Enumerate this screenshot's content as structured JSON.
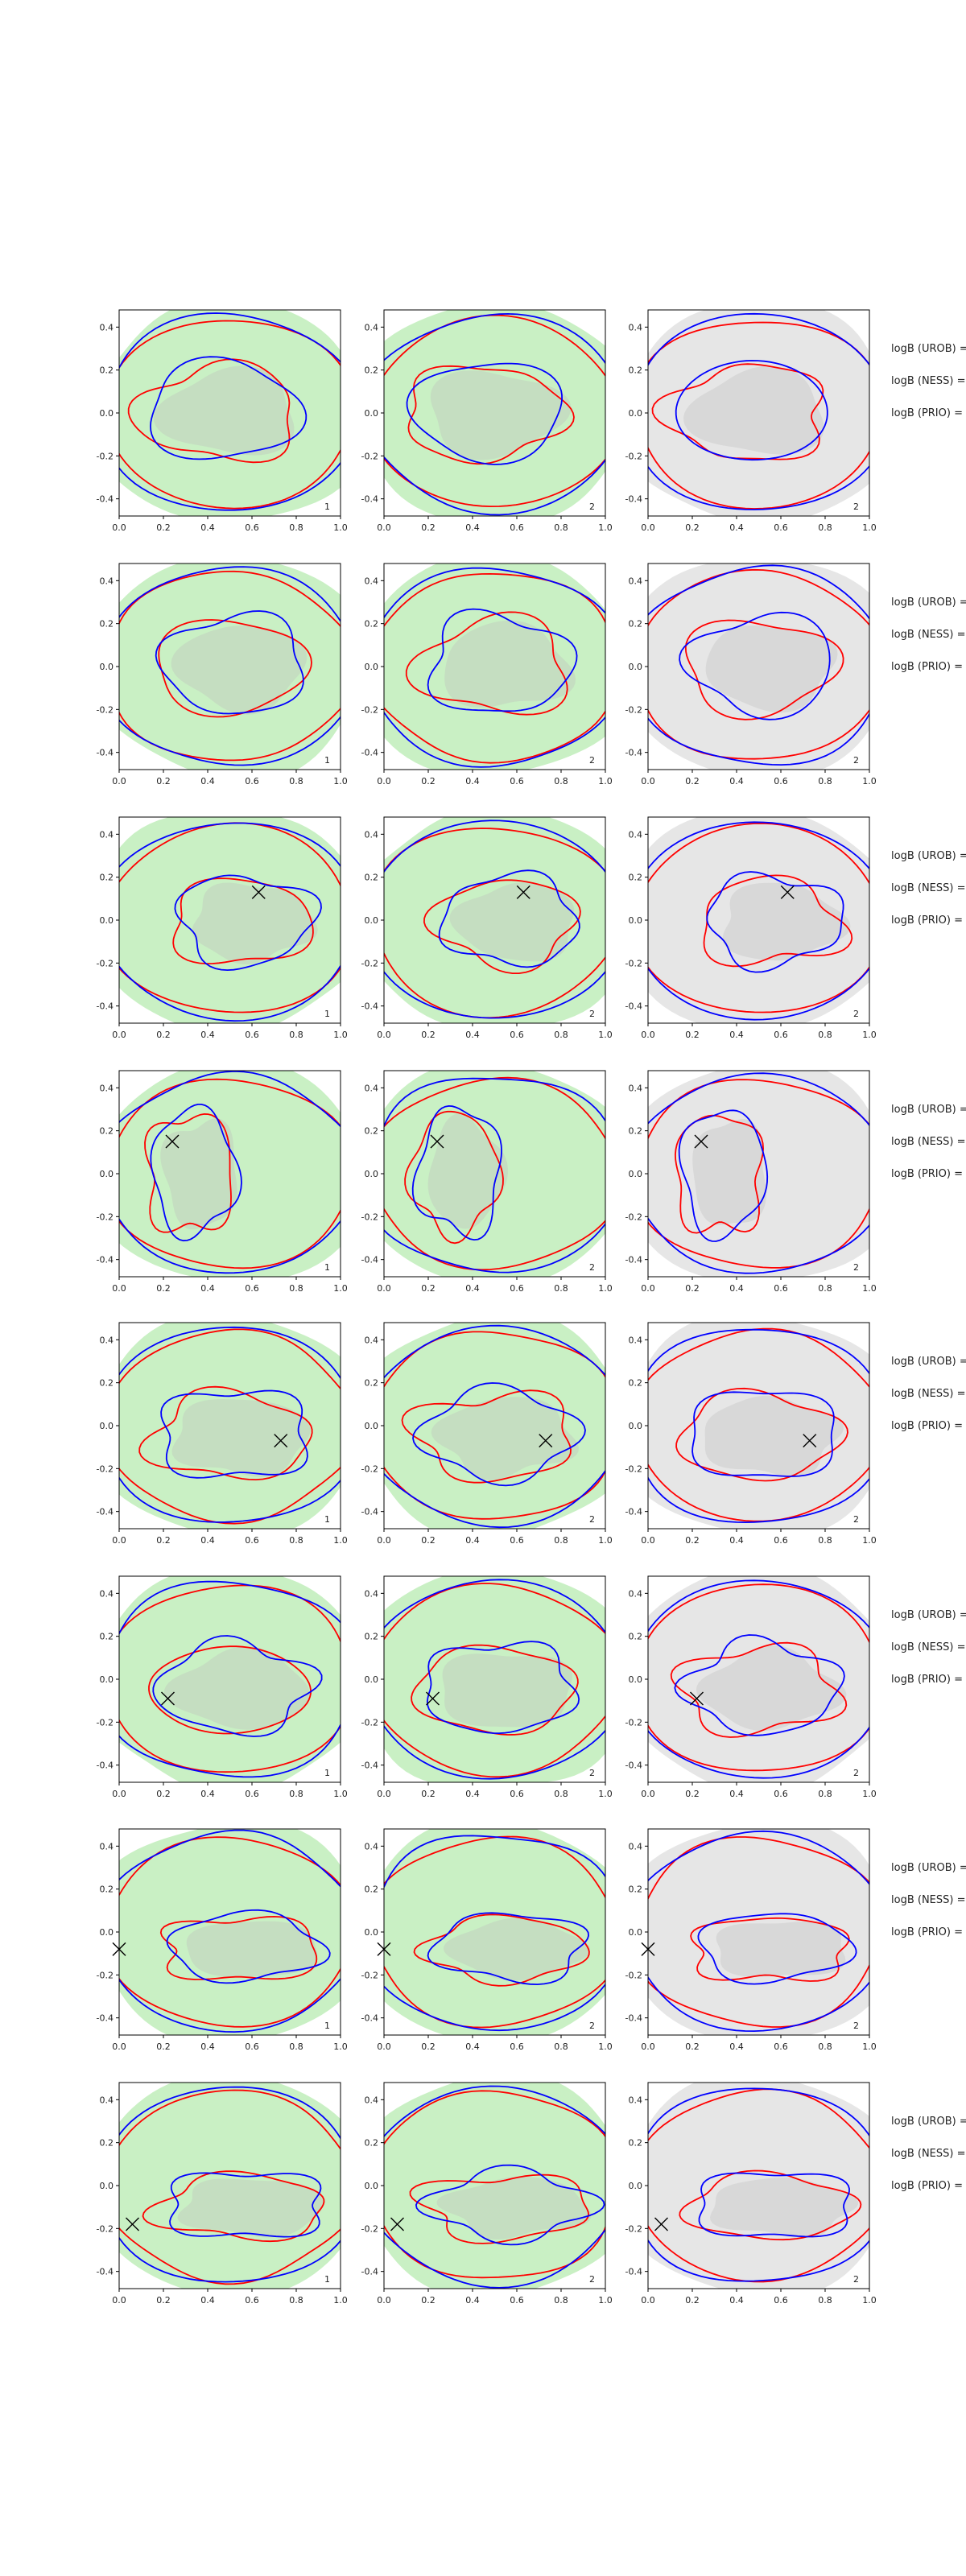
{
  "chart_data": {
    "type": "contour",
    "grid": {
      "rows": 8,
      "cols": 3
    },
    "xlim": [
      0.0,
      1.0
    ],
    "ylim": [
      -0.48,
      0.48
    ],
    "xticks": [
      "0.0",
      "0.2",
      "0.4",
      "0.6",
      "0.8",
      "1.0"
    ],
    "yticks": [
      "0.4",
      "0.2",
      "0.0",
      "-0.2",
      "-0.4"
    ],
    "colors": {
      "blue_line": "#0000ff",
      "red_line": "#ff0000",
      "green_fill": "#c9f0c4",
      "grey_fill": "#e6e6e6",
      "inner_grey": "#bdbdbd",
      "frame": "#000000"
    },
    "panel_labels": [
      "1",
      "2",
      "2"
    ],
    "logb_labels": [
      "logB (UROB) =",
      "logB (NESS) =",
      "logB (PRIO) ="
    ],
    "markers": [
      null,
      null,
      {
        "x": 0.63,
        "y": 0.13
      },
      {
        "x": 0.24,
        "y": 0.15
      },
      {
        "x": 0.73,
        "y": -0.07
      },
      {
        "x": 0.22,
        "y": -0.09
      },
      {
        "x": 0.0,
        "y": -0.08
      },
      {
        "x": 0.06,
        "y": -0.18
      }
    ]
  }
}
